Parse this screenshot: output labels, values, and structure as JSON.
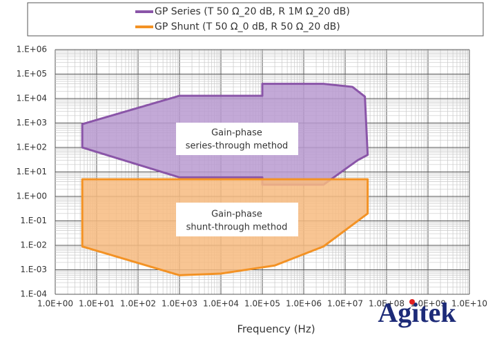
{
  "chart_data": {
    "type": "area",
    "x_label": "Frequency (Hz)",
    "log_x": true,
    "log_y": true,
    "grid": true,
    "xlim": [
      1,
      10000000000
    ],
    "ylim": [
      0.0001,
      1000000
    ],
    "xticks": [
      {
        "value": 1,
        "label": "1.0E+00"
      },
      {
        "value": 10,
        "label": "1.0E+01"
      },
      {
        "value": 100,
        "label": "1.0E+02"
      },
      {
        "value": 1000,
        "label": "1.0E+03"
      },
      {
        "value": 10000,
        "label": "1.0E+04"
      },
      {
        "value": 100000,
        "label": "1.0E+05"
      },
      {
        "value": 1000000,
        "label": "1.0E+06"
      },
      {
        "value": 10000000,
        "label": "1.0E+07"
      },
      {
        "value": 100000000,
        "label": "1.0E+08"
      },
      {
        "value": 1000000000,
        "label": "1.0E+09"
      },
      {
        "value": 10000000000,
        "label": "1.0E+10"
      }
    ],
    "yticks": [
      {
        "value": 0.0001,
        "label": "1.E-04"
      },
      {
        "value": 0.001,
        "label": "1.E-03"
      },
      {
        "value": 0.01,
        "label": "1.E-02"
      },
      {
        "value": 0.1,
        "label": "1.E-01"
      },
      {
        "value": 1,
        "label": "1.E+00"
      },
      {
        "value": 10,
        "label": "1.E+01"
      },
      {
        "value": 100,
        "label": "1.E+02"
      },
      {
        "value": 1000,
        "label": "1.E+03"
      },
      {
        "value": 10000,
        "label": "1.E+04"
      },
      {
        "value": 100000,
        "label": "1.E+05"
      },
      {
        "value": 1000000,
        "label": "1.E+06"
      }
    ],
    "series": [
      {
        "name": "GP Series (T 50  Ω_20 dB, R 1M Ω_20 dB)",
        "color": "#8a55a8",
        "fill": "#b99ad0",
        "x": [
          4.5,
          1000,
          100000,
          100000,
          3000000,
          15000000,
          30000000,
          35000000,
          20000000,
          3000000,
          100000,
          100000,
          1000,
          4.5
        ],
        "values": [
          900,
          13000,
          13000,
          40000,
          40000,
          30000,
          12000,
          50,
          30,
          3,
          3,
          6,
          6,
          100
        ]
      },
      {
        "name": "GP Shunt (T 50  Ω_0 dB, R 50 Ω_20 dB)",
        "color": "#f39224",
        "fill": "#f7bb80",
        "x": [
          4.5,
          35000000,
          35000000,
          3000000,
          200000,
          10000,
          1000,
          4.5
        ],
        "values": [
          5,
          5,
          0.2,
          0.009,
          0.0015,
          0.0007,
          0.0006,
          0.009
        ]
      }
    ],
    "annotations": [
      [
        "Gain-phase",
        "series-through method"
      ],
      [
        "Gain-phase",
        "shunt-through method"
      ]
    ],
    "watermark": "Agitek"
  }
}
